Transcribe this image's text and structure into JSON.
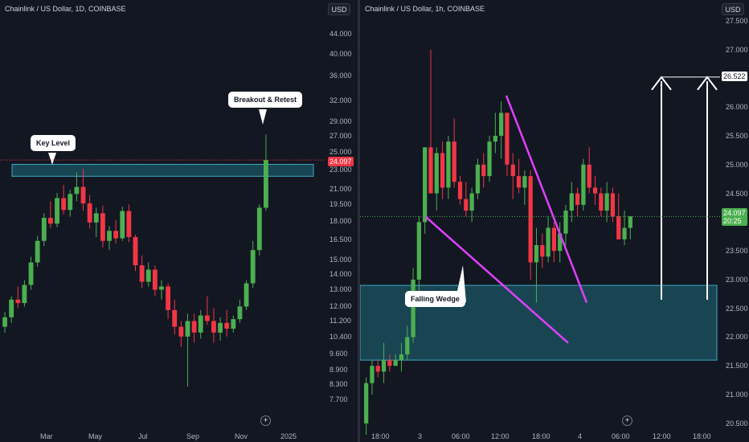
{
  "left_chart": {
    "symbol": "Chainlink / US Dollar, 1D, COINBASE",
    "currency": "USD",
    "price_axis": [
      "44.000",
      "40.000",
      "36.000",
      "32.000",
      "29.000",
      "27.000",
      "25.000",
      "23.000",
      "21.000",
      "19.500",
      "18.000",
      "16.500",
      "15.000",
      "14.000",
      "13.000",
      "12.000",
      "11.200",
      "10.400",
      "9.600",
      "8.900",
      "8.300",
      "7.700"
    ],
    "time_axis": [
      "Mar",
      "May",
      "Jul",
      "Sep",
      "Nov",
      "2025"
    ],
    "last_price": "24.097",
    "last_price_sub": "",
    "annotations": {
      "key_level": "Key Level",
      "breakout": "Breakout & Retest"
    }
  },
  "right_chart": {
    "symbol": "Chainlink / US Dollar, 1h, COINBASE",
    "currency": "USD",
    "price_axis": [
      "27.500",
      "27.000",
      "26.500",
      "26.000",
      "25.500",
      "25.000",
      "24.500",
      "24.000",
      "23.500",
      "23.000",
      "22.500",
      "22.000",
      "21.500",
      "21.000",
      "20.500"
    ],
    "time_axis": [
      "18:00",
      "3",
      "06:00",
      "12:00",
      "18:00",
      "4",
      "06:00",
      "12:00",
      "18:00"
    ],
    "last_price": "24.097",
    "countdown": "20:25",
    "target_price": "26.522",
    "annotations": {
      "wedge": "Falling Wedge"
    }
  },
  "colors": {
    "bg": "#131722",
    "up": "#4caf50",
    "down": "#f23645",
    "zone": "#1b4e5c",
    "zone_border": "#3fa9c4",
    "wedge": "#e040fb",
    "arrow": "#ffffff"
  },
  "chart_data": [
    {
      "type": "candlestick",
      "title": "Chainlink / US Dollar, 1D, COINBASE",
      "scale": "log",
      "ylim": [
        7.2,
        46
      ],
      "zone": [
        22.3,
        23.6
      ],
      "candles": [
        [
          10.9,
          11.7,
          10.6,
          11.4
        ],
        [
          11.4,
          12.6,
          11.1,
          12.4
        ],
        [
          12.4,
          13.2,
          11.9,
          12.2
        ],
        [
          12.2,
          13.6,
          12.0,
          13.3
        ],
        [
          13.3,
          15.2,
          13.0,
          14.8
        ],
        [
          14.8,
          16.8,
          14.5,
          16.4
        ],
        [
          16.4,
          18.7,
          16.0,
          18.3
        ],
        [
          18.3,
          19.8,
          17.4,
          17.8
        ],
        [
          17.8,
          20.6,
          17.5,
          20.1
        ],
        [
          20.1,
          21.4,
          18.6,
          19.0
        ],
        [
          19.0,
          20.9,
          18.4,
          20.5
        ],
        [
          20.5,
          22.7,
          19.8,
          21.2
        ],
        [
          21.2,
          23.1,
          18.9,
          19.6
        ],
        [
          19.6,
          20.4,
          17.4,
          17.9
        ],
        [
          17.9,
          19.2,
          16.7,
          18.7
        ],
        [
          18.7,
          19.4,
          15.9,
          16.4
        ],
        [
          16.4,
          17.6,
          15.7,
          17.2
        ],
        [
          17.2,
          18.1,
          16.2,
          16.6
        ],
        [
          16.6,
          19.3,
          16.4,
          18.9
        ],
        [
          18.9,
          19.5,
          16.3,
          16.7
        ],
        [
          16.7,
          16.9,
          14.2,
          14.6
        ],
        [
          14.6,
          15.3,
          13.1,
          13.5
        ],
        [
          13.5,
          14.8,
          13.2,
          14.3
        ],
        [
          14.3,
          14.6,
          12.6,
          13.0
        ],
        [
          13.0,
          13.6,
          12.4,
          13.2
        ],
        [
          13.2,
          13.4,
          11.3,
          11.8
        ],
        [
          11.8,
          12.4,
          10.5,
          10.9
        ],
        [
          10.9,
          11.2,
          9.9,
          10.4
        ],
        [
          10.4,
          11.6,
          8.2,
          11.2
        ],
        [
          11.2,
          11.6,
          10.1,
          10.6
        ],
        [
          10.6,
          11.8,
          10.3,
          11.5
        ],
        [
          11.5,
          12.6,
          11.0,
          11.2
        ],
        [
          11.2,
          11.9,
          10.1,
          10.6
        ],
        [
          10.6,
          11.4,
          10.2,
          11.1
        ],
        [
          11.1,
          11.8,
          10.4,
          10.8
        ],
        [
          10.8,
          11.5,
          10.6,
          11.3
        ],
        [
          11.3,
          12.4,
          11.1,
          12.0
        ],
        [
          12.0,
          13.6,
          11.8,
          13.4
        ],
        [
          13.4,
          16.4,
          13.1,
          15.7
        ],
        [
          15.7,
          19.5,
          15.3,
          19.2
        ],
        [
          19.2,
          27.2,
          18.9,
          24.1
        ]
      ]
    },
    {
      "type": "candlestick",
      "title": "Chainlink / US Dollar, 1h, COINBASE",
      "ylim": [
        20.4,
        27.75
      ],
      "zone": [
        21.6,
        22.9
      ],
      "target": 26.522,
      "candles": [
        [
          20.5,
          21.3,
          20.3,
          21.2
        ],
        [
          21.2,
          21.6,
          21.0,
          21.5
        ],
        [
          21.5,
          21.6,
          21.3,
          21.4
        ],
        [
          21.4,
          21.9,
          21.2,
          21.6
        ],
        [
          21.6,
          21.7,
          21.4,
          21.5
        ],
        [
          21.5,
          21.7,
          21.5,
          21.6
        ],
        [
          21.6,
          21.9,
          21.4,
          21.7
        ],
        [
          21.7,
          22.2,
          21.6,
          22.0
        ],
        [
          22.0,
          23.2,
          21.9,
          23.0
        ],
        [
          23.0,
          24.1,
          22.8,
          24.0
        ],
        [
          24.0,
          25.3,
          23.8,
          25.3
        ],
        [
          25.3,
          27.0,
          24.5,
          24.5
        ],
        [
          24.5,
          25.3,
          24.2,
          25.2
        ],
        [
          25.2,
          25.4,
          24.4,
          24.6
        ],
        [
          24.6,
          25.5,
          24.4,
          25.4
        ],
        [
          25.4,
          25.8,
          24.6,
          24.7
        ],
        [
          24.7,
          24.8,
          24.3,
          24.4
        ],
        [
          24.4,
          24.7,
          24.1,
          24.2
        ],
        [
          24.2,
          24.6,
          24.0,
          24.5
        ],
        [
          24.5,
          25.1,
          24.4,
          25.0
        ],
        [
          25.0,
          25.2,
          24.6,
          24.8
        ],
        [
          24.8,
          25.5,
          24.7,
          25.4
        ],
        [
          25.4,
          25.9,
          25.2,
          25.5
        ],
        [
          25.5,
          26.1,
          25.1,
          25.9
        ],
        [
          25.9,
          25.9,
          24.8,
          25.0
        ],
        [
          25.0,
          25.2,
          24.4,
          24.8
        ],
        [
          24.8,
          25.1,
          24.5,
          24.6
        ],
        [
          24.6,
          24.9,
          24.3,
          24.8
        ],
        [
          24.8,
          24.9,
          23.0,
          23.3
        ],
        [
          23.3,
          23.9,
          22.6,
          23.6
        ],
        [
          23.6,
          23.8,
          23.2,
          23.4
        ],
        [
          23.4,
          24.1,
          23.3,
          23.9
        ],
        [
          23.9,
          24.0,
          23.3,
          23.5
        ],
        [
          23.5,
          24.0,
          23.3,
          23.8
        ],
        [
          23.8,
          24.3,
          23.6,
          24.2
        ],
        [
          24.2,
          24.7,
          24.0,
          24.5
        ],
        [
          24.5,
          24.6,
          24.1,
          24.3
        ],
        [
          24.3,
          25.1,
          24.2,
          25.0
        ],
        [
          25.0,
          25.3,
          24.5,
          24.6
        ],
        [
          24.6,
          24.8,
          24.3,
          24.5
        ],
        [
          24.5,
          24.6,
          24.1,
          24.2
        ],
        [
          24.2,
          24.7,
          24.0,
          24.5
        ],
        [
          24.5,
          24.6,
          24.0,
          24.1
        ],
        [
          24.1,
          24.5,
          23.7,
          23.7
        ],
        [
          23.7,
          24.2,
          23.6,
          23.9
        ],
        [
          23.9,
          24.1,
          23.7,
          24.1
        ]
      ]
    }
  ]
}
